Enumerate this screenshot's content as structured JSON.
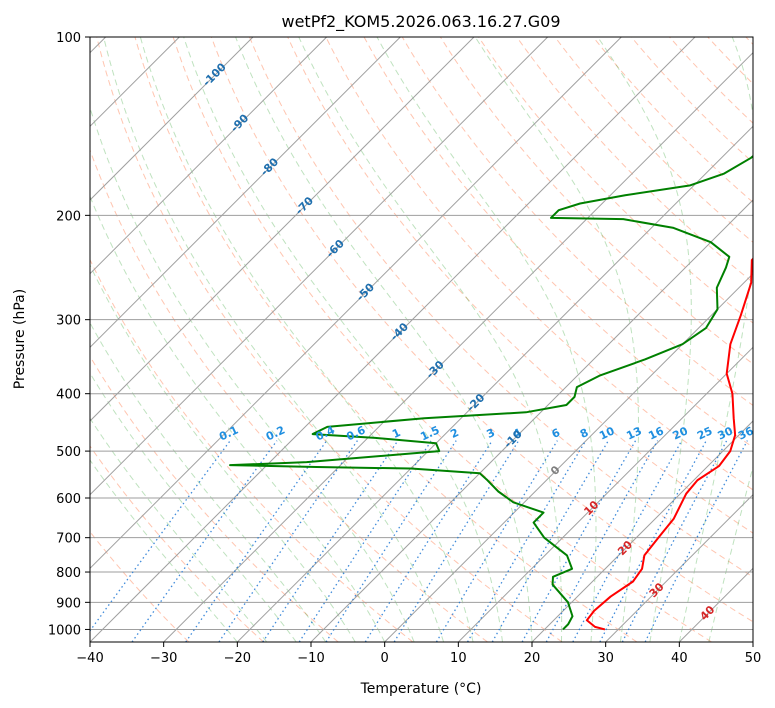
{
  "chart_data": {
    "type": "line",
    "title": "wetPf2_KOM5.2026.063.16.27.G09",
    "xlabel": "Temperature (°C)",
    "ylabel": "Pressure (hPa)",
    "xlim": [
      -40,
      50
    ],
    "ylim": [
      1050,
      100
    ],
    "y_scale": "log",
    "skew": true,
    "x_ticks": [
      -40,
      -30,
      -20,
      -10,
      0,
      10,
      20,
      30,
      40,
      50
    ],
    "x_tick_labels": [
      "−40",
      "−30",
      "−20",
      "−10",
      "0",
      "10",
      "20",
      "30",
      "40",
      "50"
    ],
    "y_ticks": [
      1000,
      900,
      800,
      700,
      600,
      500,
      400,
      300,
      200,
      100
    ],
    "y_tick_labels": [
      "1000",
      "900",
      "800",
      "700",
      "600",
      "500",
      "400",
      "300",
      "200",
      "100"
    ],
    "isotherm_labels": [
      {
        "value": -100,
        "p": 116
      },
      {
        "value": -90,
        "p": 140
      },
      {
        "value": -80,
        "p": 166
      },
      {
        "value": -70,
        "p": 193
      },
      {
        "value": -60,
        "p": 228
      },
      {
        "value": -50,
        "p": 270
      },
      {
        "value": -40,
        "p": 315
      },
      {
        "value": -30,
        "p": 365
      },
      {
        "value": -20,
        "p": 415
      },
      {
        "value": -10,
        "p": 478
      },
      {
        "value": 0,
        "p": 540
      },
      {
        "value": 10,
        "p": 625
      },
      {
        "value": 20,
        "p": 730
      },
      {
        "value": 30,
        "p": 860
      },
      {
        "value": 40,
        "p": 940
      }
    ],
    "mixing_ratio_labels": [
      "0.1",
      "0.2",
      "0.4",
      "0.6",
      "1",
      "1.5",
      "2",
      "3",
      "4",
      "6",
      "8",
      "10",
      "13",
      "16",
      "20",
      "25",
      "30",
      "36"
    ],
    "mixing_ratio_values": [
      0.1,
      0.2,
      0.4,
      0.6,
      1,
      1.5,
      2,
      3,
      4,
      6,
      8,
      10,
      13,
      16,
      20,
      25,
      30,
      36
    ],
    "mixing_ratio_label_pressure": 480,
    "series": [
      {
        "name": "Temperature",
        "color": "#ff0000",
        "points": [
          [
            28.2,
            1000
          ],
          [
            26.5,
            990
          ],
          [
            24.5,
            965
          ],
          [
            24.2,
            930
          ],
          [
            24.5,
            880
          ],
          [
            25.5,
            830
          ],
          [
            25.0,
            790
          ],
          [
            23.5,
            750
          ],
          [
            23.0,
            700
          ],
          [
            22.5,
            650
          ],
          [
            20.8,
            590
          ],
          [
            20.5,
            560
          ],
          [
            21.5,
            530
          ],
          [
            21.0,
            500
          ],
          [
            19.5,
            470
          ],
          [
            17.0,
            440
          ],
          [
            13.5,
            400
          ],
          [
            10.0,
            370
          ],
          [
            6.5,
            330
          ],
          [
            4.0,
            295
          ],
          [
            1.0,
            260
          ],
          [
            -2.0,
            238
          ],
          [
            -2.0,
            225
          ],
          [
            0.0,
            210
          ],
          [
            1.5,
            198
          ],
          [
            1.5,
            180
          ],
          [
            1.0,
            162
          ],
          [
            0.5,
            145
          ],
          [
            0.5,
            132
          ],
          [
            1.5,
            120
          ],
          [
            4.0,
            110
          ],
          [
            6.0,
            100
          ]
        ]
      },
      {
        "name": "Dewpoint",
        "color": "#008000",
        "points": [
          [
            22.5,
            1000
          ],
          [
            22.5,
            980
          ],
          [
            22.0,
            950
          ],
          [
            19.5,
            900
          ],
          [
            15.0,
            840
          ],
          [
            14.0,
            815
          ],
          [
            15.5,
            790
          ],
          [
            13.0,
            750
          ],
          [
            7.5,
            700
          ],
          [
            4.0,
            660
          ],
          [
            4.0,
            635
          ],
          [
            -1.5,
            610
          ],
          [
            -5.0,
            585
          ],
          [
            -8.0,
            560
          ],
          [
            -10.0,
            545
          ],
          [
            -20.0,
            535
          ],
          [
            -33.0,
            532
          ],
          [
            -45.0,
            528
          ],
          [
            -35.0,
            522
          ],
          [
            -18.5,
            500
          ],
          [
            -20.0,
            485
          ],
          [
            -29.0,
            475
          ],
          [
            -38.0,
            468
          ],
          [
            -37.0,
            455
          ],
          [
            -25.0,
            440
          ],
          [
            -12.0,
            430
          ],
          [
            -7.5,
            418
          ],
          [
            -7.5,
            405
          ],
          [
            -8.5,
            390
          ],
          [
            -7.0,
            373
          ],
          [
            -3.0,
            350
          ],
          [
            0.0,
            330
          ],
          [
            1.0,
            310
          ],
          [
            0.0,
            288
          ],
          [
            -3.0,
            265
          ],
          [
            -4.5,
            245
          ],
          [
            -5.5,
            235
          ],
          [
            -10.0,
            222
          ],
          [
            -17.0,
            210
          ],
          [
            -25.0,
            203
          ],
          [
            -35.0,
            202
          ],
          [
            -35.0,
            196
          ],
          [
            -33.0,
            191
          ],
          [
            -28.0,
            185
          ],
          [
            -20.5,
            178
          ],
          [
            -17.5,
            170
          ],
          [
            -16.0,
            160
          ],
          [
            -15.5,
            150
          ],
          [
            -15.0,
            140
          ],
          [
            -15.0,
            130
          ],
          [
            -14.0,
            122
          ],
          [
            -11.0,
            114
          ],
          [
            -7.5,
            105
          ],
          [
            -5.5,
            100
          ]
        ]
      }
    ]
  }
}
